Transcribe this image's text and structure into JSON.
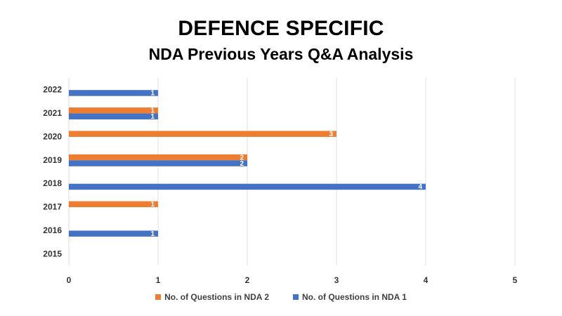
{
  "chart_data": {
    "type": "bar",
    "orientation": "horizontal",
    "title": "DEFENCE SPECIFIC",
    "subtitle": "NDA Previous Years Q&A Analysis",
    "categories": [
      "2015",
      "2016",
      "2017",
      "2018",
      "2019",
      "2020",
      "2021",
      "2022"
    ],
    "series": [
      {
        "name": "No. of Questions in NDA 2",
        "color": "#ED7D31",
        "values": [
          null,
          null,
          1,
          null,
          2,
          3,
          1,
          null
        ]
      },
      {
        "name": "No. of Questions in NDA 1",
        "color": "#4472C4",
        "values": [
          null,
          1,
          null,
          4,
          2,
          null,
          1,
          1
        ]
      }
    ],
    "x_ticks": [
      "0",
      "1",
      "2",
      "3",
      "4",
      "5"
    ],
    "xlim": [
      0,
      5
    ],
    "grid": true,
    "legend_position": "bottom"
  }
}
